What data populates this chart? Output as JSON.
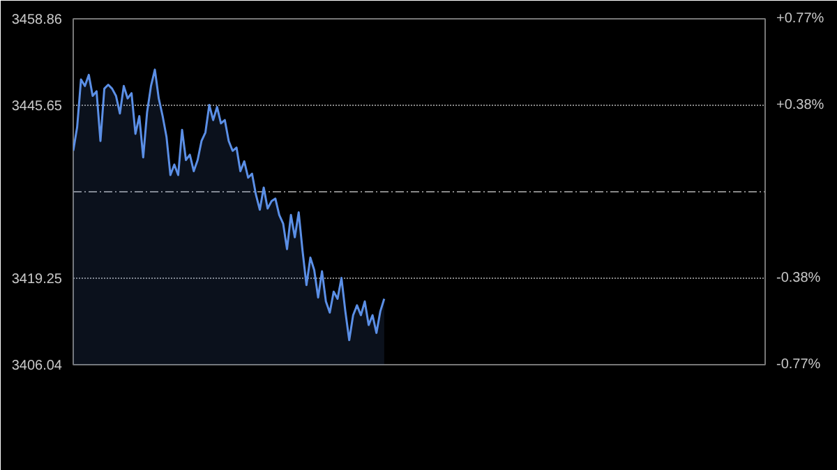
{
  "chart_data": {
    "type": "area",
    "color": "#5b8fe6",
    "categories": [
      null,
      null,
      null,
      null,
      null,
      null,
      null,
      null,
      null,
      null,
      null,
      null,
      null,
      null,
      null,
      null,
      null,
      null,
      null,
      null,
      null,
      null,
      null,
      null,
      null,
      null,
      null,
      null,
      null,
      null,
      null,
      null,
      null,
      null,
      null,
      null,
      null,
      null,
      null,
      null,
      null,
      null,
      null,
      null,
      null,
      null,
      null,
      null,
      null,
      null,
      null,
      null,
      null,
      null,
      null,
      null,
      null,
      null,
      null,
      null,
      null,
      null,
      null,
      null,
      null,
      null,
      null,
      null,
      null,
      null,
      null,
      null,
      null,
      null,
      null,
      null,
      null,
      null,
      null,
      null,
      null,
      null,
      null,
      null,
      null,
      null,
      null,
      null,
      null,
      null,
      null,
      null,
      null,
      null,
      null,
      null,
      null,
      null,
      null,
      null,
      null,
      null,
      null,
      null,
      null,
      null,
      null,
      null,
      null,
      null,
      null,
      null,
      null,
      null,
      null,
      null,
      null,
      null,
      null,
      null,
      null,
      null,
      null,
      null,
      null,
      null,
      null,
      null,
      null,
      null,
      null,
      null,
      null,
      null,
      null,
      null,
      null,
      null,
      null,
      null,
      null,
      null,
      null,
      null,
      null,
      null,
      null,
      null,
      null,
      null,
      null,
      null,
      null,
      null,
      null,
      null,
      null,
      null,
      null,
      null,
      null,
      null,
      null,
      null,
      null,
      null,
      null,
      null,
      null,
      null,
      null,
      null,
      null,
      null,
      null,
      null,
      null,
      null,
      null
    ],
    "values": [
      3438.7,
      3442.3,
      3449.6,
      3448.6,
      3450.3,
      3447.1,
      3447.8,
      3440.2,
      3448.2,
      3448.8,
      3448.2,
      3447.1,
      3444.4,
      3448.6,
      3446.7,
      3447.5,
      3441.3,
      3444.0,
      3437.7,
      3444.6,
      3448.6,
      3451.1,
      3446.7,
      3444.0,
      3440.8,
      3435.0,
      3436.6,
      3435.0,
      3441.9,
      3437.3,
      3438.1,
      3435.6,
      3437.3,
      3440.2,
      3441.5,
      3445.7,
      3443.4,
      3445.4,
      3442.9,
      3443.4,
      3440.2,
      3438.7,
      3439.2,
      3435.6,
      3437.1,
      3434.6,
      3435.2,
      3432.0,
      3429.7,
      3433.1,
      3429.9,
      3431.0,
      3431.4,
      3428.9,
      3427.6,
      3423.7,
      3428.9,
      3425.5,
      3429.3,
      3423.4,
      3418.2,
      3422.4,
      3420.5,
      3416.3,
      3420.3,
      3415.7,
      3414.0,
      3417.2,
      3416.1,
      3419.3,
      3414.2,
      3409.8,
      3413.6,
      3415.1,
      3413.6,
      3415.7,
      3412.1,
      3413.6,
      3410.9,
      3414.2,
      3416.1,
      null,
      null,
      null,
      null,
      null,
      null,
      null,
      null,
      null,
      null,
      null,
      null,
      null,
      null,
      null,
      null,
      null,
      null,
      null,
      null,
      null,
      null,
      null,
      null,
      null,
      null,
      null,
      null,
      null,
      null,
      null,
      null,
      null,
      null,
      null,
      null,
      null,
      null,
      null,
      null,
      null,
      null,
      null,
      null,
      null,
      null,
      null,
      null,
      null,
      null,
      null,
      null,
      null,
      null,
      null,
      null,
      null,
      null,
      null,
      null,
      null,
      null,
      null,
      null,
      null,
      null,
      null,
      null,
      null,
      null,
      null,
      null,
      null,
      null,
      null,
      null,
      null,
      null,
      null,
      null,
      null,
      null,
      null,
      null,
      null,
      null,
      null,
      null,
      null,
      null,
      null,
      null,
      null,
      null,
      null,
      null,
      null,
      null
    ],
    "ylim": [
      3406.04,
      3458.86
    ],
    "yticks": [
      3406.04,
      3419.25,
      {
        "value": 3432.45,
        "label": null
      },
      3445.65,
      3458.86
    ],
    "y2lim": [
      -0.7695,
      0.7695
    ],
    "y2ticks": [
      {
        "value": -0.7695,
        "label": "-0.77%"
      },
      {
        "value": -0.3846,
        "label": "-0.38%"
      },
      {
        "value": 0.3846,
        "label": "+0.38%"
      },
      {
        "value": 0.7695,
        "label": "+0.77%"
      }
    ],
    "grid": "y",
    "tick_labels": "y"
  }
}
